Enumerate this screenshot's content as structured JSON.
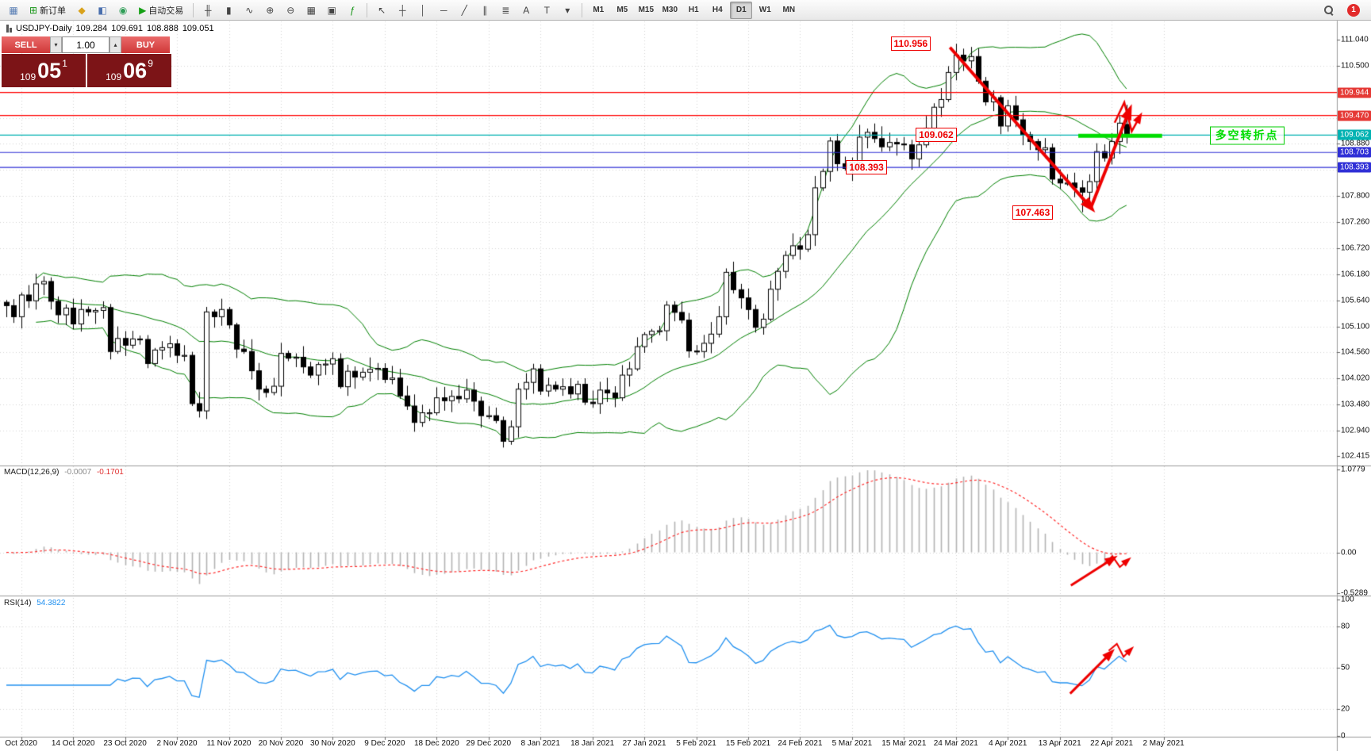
{
  "toolbar": {
    "groups": [
      {
        "name": "standard",
        "buttons": [
          {
            "name": "new-chart-button",
            "icon": "chart-window-icon",
            "glyph": "▦",
            "color": "#5a7fb5"
          },
          {
            "name": "new-order-button",
            "icon": "new-order-icon",
            "glyph": "⊞",
            "color": "#189618",
            "label": "新订单"
          },
          {
            "name": "profiles-button",
            "icon": "profiles-icon",
            "glyph": "◆",
            "color": "#d9a21b"
          },
          {
            "name": "market-watch-button",
            "icon": "market-watch-icon",
            "glyph": "◧",
            "color": "#4a6fae"
          },
          {
            "name": "navigator-button",
            "icon": "navigator-icon",
            "glyph": "◉",
            "color": "#2f9e57"
          },
          {
            "name": "autotrading-button",
            "icon": "autotrading-play-icon",
            "glyph": "▶",
            "color": "#14a014",
            "label": "自动交易"
          }
        ]
      },
      {
        "name": "chart-controls",
        "buttons": [
          {
            "name": "bar-chart-button",
            "icon": "ohlc-bars-icon",
            "glyph": "╫",
            "color": "#444444"
          },
          {
            "name": "candlestick-chart-button",
            "icon": "candlestick-icon",
            "glyph": "▮",
            "color": "#444444"
          },
          {
            "name": "line-chart-button",
            "icon": "line-chart-icon",
            "glyph": "∿",
            "color": "#444444"
          },
          {
            "name": "zoom-in-button",
            "icon": "zoom-in-icon",
            "glyph": "⊕",
            "color": "#444444"
          },
          {
            "name": "zoom-out-button",
            "icon": "zoom-out-icon",
            "glyph": "⊖",
            "color": "#444444"
          },
          {
            "name": "tile-windows-button",
            "icon": "tile-windows-icon",
            "glyph": "▦",
            "color": "#444444"
          },
          {
            "name": "auto-arrange-button",
            "icon": "arrange-windows-icon",
            "glyph": "▣",
            "color": "#444444"
          },
          {
            "name": "indicators-button",
            "icon": "indicator-list-icon",
            "glyph": "ƒ",
            "color": "#189618"
          }
        ]
      },
      {
        "name": "objects",
        "buttons": [
          {
            "name": "cursor-button",
            "icon": "cursor-icon",
            "glyph": "↖",
            "color": "#444444"
          },
          {
            "name": "crosshair-button",
            "icon": "crosshair-icon",
            "glyph": "┼",
            "color": "#444444"
          },
          {
            "name": "vertical-line-button",
            "icon": "vertical-line-icon",
            "glyph": "│",
            "color": "#444444"
          },
          {
            "name": "horizontal-line-button",
            "icon": "horizontal-line-icon",
            "glyph": "─",
            "color": "#444444"
          },
          {
            "name": "trendline-button",
            "icon": "trendline-icon",
            "glyph": "╱",
            "color": "#444444"
          },
          {
            "name": "channel-button",
            "icon": "channel-icon",
            "glyph": "∥",
            "color": "#444444"
          },
          {
            "name": "fibonacci-button",
            "icon": "fibonacci-icon",
            "glyph": "≣",
            "color": "#444444"
          },
          {
            "name": "text-button",
            "icon": "text-icon",
            "glyph": "A",
            "color": "#444444"
          },
          {
            "name": "text-label-button",
            "icon": "text-label-icon",
            "glyph": "T",
            "color": "#444444"
          },
          {
            "name": "shapes-button",
            "icon": "shapes-dropdown-icon",
            "glyph": "▾",
            "color": "#444444"
          }
        ]
      }
    ],
    "timeframes": [
      "M1",
      "M5",
      "M15",
      "M30",
      "H1",
      "H4",
      "D1",
      "W1",
      "MN"
    ],
    "active_timeframe": "D1",
    "notification_count": "1"
  },
  "quote_bar": {
    "symbol": "USDJPY-Daily",
    "open": "109.284",
    "high": "109.691",
    "low": "108.888",
    "close": "109.051"
  },
  "trade_panel": {
    "sell_label": "SELL",
    "buy_label": "BUY",
    "volume": "1.00",
    "sell_price": {
      "base": "109",
      "big": "05",
      "pip": "1"
    },
    "buy_price": {
      "base": "109",
      "big": "06",
      "pip": "9"
    }
  },
  "indicators": {
    "macd": {
      "title": "MACD(12,26,9)",
      "value_main": "-0.0007",
      "value_signal": "-0.1701",
      "axis_labels": [
        {
          "text": "1.0779",
          "value": 1.0779
        },
        {
          "text": "0.00",
          "value": 0
        },
        {
          "text": "-0.5289",
          "value": -0.5289
        }
      ]
    },
    "rsi": {
      "title": "RSI(14)",
      "value": "54.3822",
      "axis_labels": [
        {
          "text": "100",
          "value": 100
        },
        {
          "text": "80",
          "value": 80
        },
        {
          "text": "50",
          "value": 50
        },
        {
          "text": "20",
          "value": 20
        },
        {
          "text": "0",
          "value": 0
        }
      ]
    }
  },
  "price_axis": {
    "labels": [
      {
        "text": "111.040",
        "value": 111.04
      },
      {
        "text": "110.500",
        "value": 110.5
      },
      {
        "text": "108.880",
        "value": 108.88
      },
      {
        "text": "107.800",
        "value": 107.8
      },
      {
        "text": "107.260",
        "value": 107.26
      },
      {
        "text": "106.720",
        "value": 106.72
      },
      {
        "text": "106.180",
        "value": 106.18
      },
      {
        "text": "105.640",
        "value": 105.64
      },
      {
        "text": "105.100",
        "value": 105.1
      },
      {
        "text": "104.560",
        "value": 104.56
      },
      {
        "text": "104.020",
        "value": 104.02
      },
      {
        "text": "103.480",
        "value": 103.48
      },
      {
        "text": "102.940",
        "value": 102.94
      },
      {
        "text": "102.415",
        "value": 102.415
      }
    ],
    "tags": [
      {
        "text": "109.944",
        "value": 109.944,
        "bg": "#e53935",
        "fg": "#ffffff"
      },
      {
        "text": "109.470",
        "value": 109.47,
        "bg": "#e53935",
        "fg": "#ffffff"
      },
      {
        "text": "109.062",
        "value": 109.062,
        "bg": "#00b2b2",
        "fg": "#ffffff"
      },
      {
        "text": "108.703",
        "value": 108.703,
        "bg": "#2f2fd6",
        "fg": "#ffffff"
      },
      {
        "text": "108.393",
        "value": 108.393,
        "bg": "#2f2fd6",
        "fg": "#ffffff"
      }
    ]
  },
  "time_axis": {
    "labels": [
      "Oct 2020",
      "14 Oct 2020",
      "23 Oct 2020",
      "2 Nov 2020",
      "11 Nov 2020",
      "20 Nov 2020",
      "30 Nov 2020",
      "9 Dec 2020",
      "18 Dec 2020",
      "29 Dec 2020",
      "8 Jan 2021",
      "18 Jan 2021",
      "27 Jan 2021",
      "5 Feb 2021",
      "15 Feb 2021",
      "24 Feb 2021",
      "5 Mar 2021",
      "15 Mar 2021",
      "24 Mar 2021",
      "4 Apr 2021",
      "13 Apr 2021",
      "22 Apr 2021",
      "2 May 2021"
    ],
    "tick_indices": [
      2,
      9,
      16,
      23,
      30,
      37,
      44,
      51,
      58,
      65,
      72,
      79,
      86,
      93,
      100,
      107,
      114,
      121,
      128,
      135,
      142,
      149,
      156
    ]
  },
  "annotations": [
    {
      "name": "peak-price-annotation",
      "text": "110.956",
      "i": 119.2,
      "price": 110.956,
      "type": "red"
    },
    {
      "name": "mid-price-annotation",
      "text": "109.062",
      "i": 122.6,
      "price": 109.062,
      "type": "red"
    },
    {
      "name": "support-price-annotation",
      "text": "108.393",
      "i": 113.2,
      "price": 108.393,
      "type": "red"
    },
    {
      "name": "low-price-annotation",
      "text": "107.463",
      "i": 135.6,
      "price": 107.463,
      "type": "red"
    },
    {
      "name": "turning-point-annotation",
      "text": "多空转折点",
      "i": 162.2,
      "price": 109.05,
      "type": "green"
    }
  ],
  "chart_data": {
    "type": "candlestick",
    "symbol": "USDJPY",
    "timeframe": "Daily",
    "ohlc_current": {
      "open": 109.284,
      "high": 109.691,
      "low": 108.888,
      "close": 109.051
    },
    "first_open": 105.6,
    "closes": [
      105.53,
      105.3,
      105.75,
      105.63,
      105.98,
      106.03,
      105.62,
      105.34,
      105.48,
      105.15,
      105.45,
      105.4,
      105.43,
      105.49,
      104.58,
      104.85,
      104.71,
      104.84,
      104.83,
      104.33,
      104.61,
      104.66,
      104.74,
      104.5,
      104.5,
      103.5,
      103.35,
      105.4,
      105.3,
      105.45,
      105.13,
      104.63,
      104.58,
      104.18,
      103.8,
      103.73,
      103.86,
      104.54,
      104.44,
      104.46,
      104.26,
      104.09,
      104.31,
      104.32,
      104.43,
      103.85,
      104.17,
      104.05,
      104.15,
      104.21,
      104.23,
      104.0,
      104.03,
      103.66,
      103.45,
      103.11,
      103.31,
      103.31,
      103.62,
      103.56,
      103.65,
      103.6,
      103.78,
      103.55,
      103.25,
      103.25,
      103.15,
      102.72,
      103.02,
      103.8,
      103.94,
      104.22,
      103.76,
      103.88,
      103.8,
      103.85,
      103.7,
      103.9,
      103.53,
      103.5,
      103.78,
      103.72,
      103.62,
      104.09,
      104.22,
      104.68,
      104.93,
      105.0,
      105.01,
      105.54,
      105.39,
      105.23,
      104.59,
      104.58,
      104.75,
      104.94,
      105.3,
      106.22,
      105.86,
      105.69,
      105.45,
      105.08,
      105.25,
      105.87,
      106.24,
      106.57,
      106.77,
      106.7,
      107.0,
      107.97,
      108.31,
      108.94,
      108.47,
      108.37,
      108.5,
      109.02,
      109.12,
      108.99,
      108.82,
      108.91,
      108.88,
      108.86,
      108.57,
      108.86,
      109.2,
      109.64,
      109.8,
      110.36,
      110.72,
      110.6,
      110.69,
      110.18,
      109.75,
      109.84,
      109.25,
      109.67,
      109.38,
      109.07,
      108.93,
      108.76,
      108.8,
      108.15,
      108.07,
      108.07,
      107.97,
      107.88,
      108.1,
      108.72,
      108.59,
      108.93,
      109.31,
      109.051
    ],
    "wick_overrides": {
      "27": {
        "low": 103.18
      },
      "67": {
        "low": 102.59
      },
      "128": {
        "high": 110.956
      },
      "145": {
        "low": 107.463
      },
      "151": {
        "open": 109.284,
        "high": 109.691,
        "low": 108.888
      }
    },
    "ylim": [
      102.415,
      111.04
    ],
    "grid_step": 0.54,
    "levels": [
      {
        "price": 109.944,
        "color": "#ff0000"
      },
      {
        "price": 109.47,
        "color": "#ff0000"
      },
      {
        "price": 109.062,
        "color": "#00b2b2"
      },
      {
        "price": 108.703,
        "color": "#2f2fd6"
      },
      {
        "price": 108.393,
        "color": "#2f2fd6"
      }
    ],
    "bollinger": {
      "period": 20,
      "deviation": 2,
      "color": "#008000"
    },
    "macd": {
      "fast": 12,
      "slow": 26,
      "signal_period": 9,
      "ylim": [
        -0.5289,
        1.0779
      ],
      "histogram_color": "#b4b4b4",
      "signal_color": "#ff2a2a"
    },
    "rsi": {
      "period": 14,
      "levels": [
        80,
        50,
        20
      ],
      "ylim": [
        0,
        100
      ],
      "line_color": "#2090f0"
    },
    "drawings": {
      "green_segment": {
        "from_i": 144.5,
        "to_i": 155.8,
        "p": 109.05,
        "color": "#00dd00"
      },
      "trend_down": {
        "from": {
          "i": 127.2,
          "p": 110.88
        },
        "to": {
          "i": 146.2,
          "p": 107.56
        }
      },
      "trend_up": {
        "from": {
          "i": 146.2,
          "p": 107.56
        },
        "to": {
          "i": 151.4,
          "p": 109.58
        }
      },
      "zigzag_main": [
        {
          "i": 149.4,
          "p": 109.32
        },
        {
          "i": 150.7,
          "p": 109.74
        },
        {
          "i": 151.7,
          "p": 109.14
        },
        {
          "i": 152.8,
          "p": 109.45
        }
      ],
      "macd_arrow": {
        "from": {
          "i": 143.5,
          "v": -0.43
        },
        "to": {
          "i": 149.2,
          "v": -0.08
        }
      },
      "macd_zigzag": [
        {
          "i": 147.9,
          "v": -0.16
        },
        {
          "i": 149.1,
          "v": -0.05
        },
        {
          "i": 150.1,
          "v": -0.19
        },
        {
          "i": 151.2,
          "v": -0.1
        }
      ],
      "rsi_arrow": {
        "from": {
          "i": 143.4,
          "v": 31
        },
        "to": {
          "i": 148.9,
          "v": 61
        }
      },
      "rsi_zigzag": [
        {
          "i": 148.6,
          "v": 62.5
        },
        {
          "i": 149.7,
          "v": 67.5
        },
        {
          "i": 150.6,
          "v": 58
        },
        {
          "i": 151.6,
          "v": 63.5
        }
      ],
      "arrow_color": "#ee0000"
    }
  }
}
